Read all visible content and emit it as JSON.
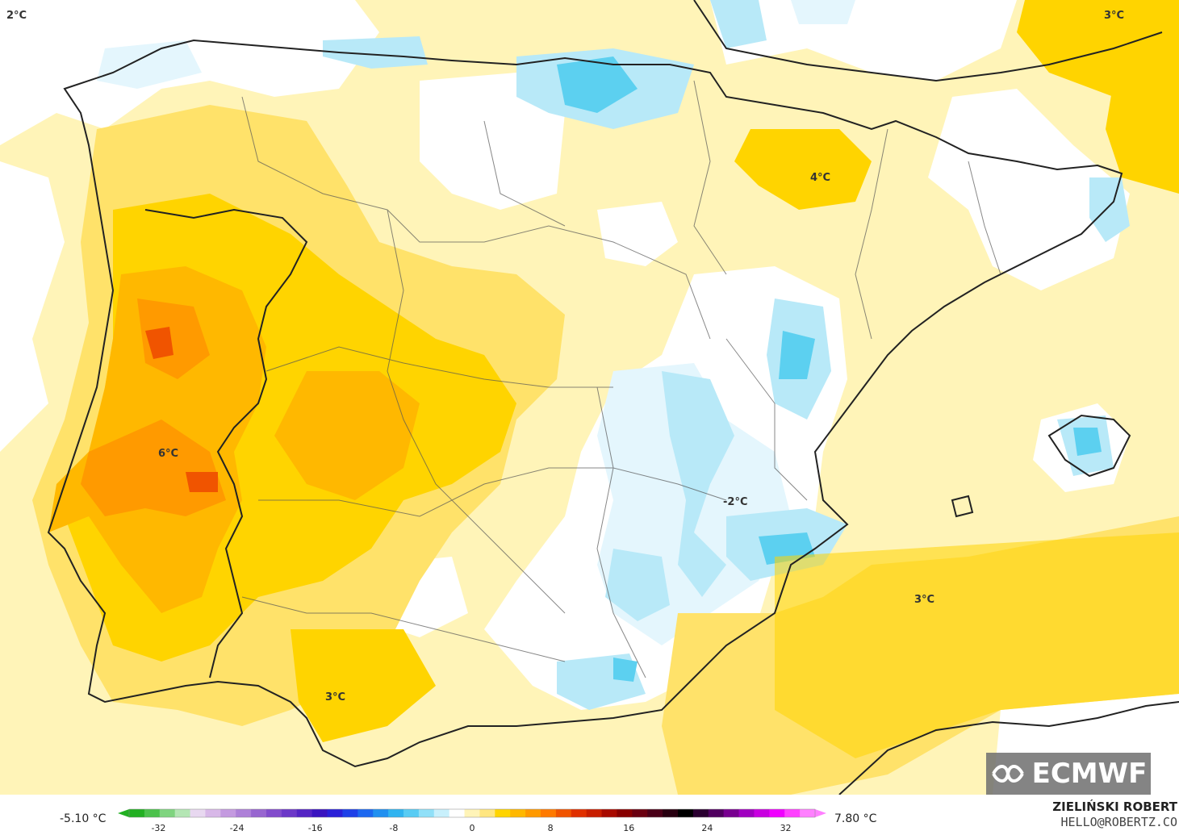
{
  "map": {
    "labels": [
      {
        "id": "top-left",
        "text": "2°C"
      },
      {
        "id": "top-right",
        "text": "3°C"
      },
      {
        "id": "northeast",
        "text": "4°C"
      },
      {
        "id": "portugal",
        "text": "6°C"
      },
      {
        "id": "east",
        "text": "-2°C"
      },
      {
        "id": "sea",
        "text": "3°C"
      },
      {
        "id": "south",
        "text": "3°C"
      }
    ]
  },
  "legend": {
    "min_value": "-5.10 °C",
    "max_value": "7.80 °C",
    "ticks": [
      "-32",
      "-24",
      "-16",
      "-8",
      "0",
      "8",
      "16",
      "24",
      "32"
    ],
    "colors": [
      "#22b022",
      "#4cc24c",
      "#7fd47f",
      "#b4e6b4",
      "#e8d8f0",
      "#d8b8e8",
      "#c49ae0",
      "#ae80d8",
      "#9866d0",
      "#824ccc",
      "#6c38c8",
      "#5424c4",
      "#3a14c0",
      "#2a20d8",
      "#1e40e8",
      "#1c68f0",
      "#2090f0",
      "#30b4f0",
      "#58ccf4",
      "#90e0f8",
      "#c8f0fc",
      "#ffffff",
      "#fff4b8",
      "#ffe680",
      "#ffd400",
      "#ffb800",
      "#ff9a00",
      "#ff7a00",
      "#f05400",
      "#e03000",
      "#c81e00",
      "#a80a00",
      "#880000",
      "#6a0010",
      "#4a0018",
      "#280010",
      "#000000",
      "#2a0030",
      "#500060",
      "#780090",
      "#a000c0",
      "#c800e0",
      "#f000ff",
      "#ff40ff",
      "#ff80ff"
    ]
  },
  "branding": {
    "logo": "ECMWF",
    "author": "ZIELIŃSKI ROBERT",
    "email": "HELLO@ROBERTZ.CO"
  }
}
